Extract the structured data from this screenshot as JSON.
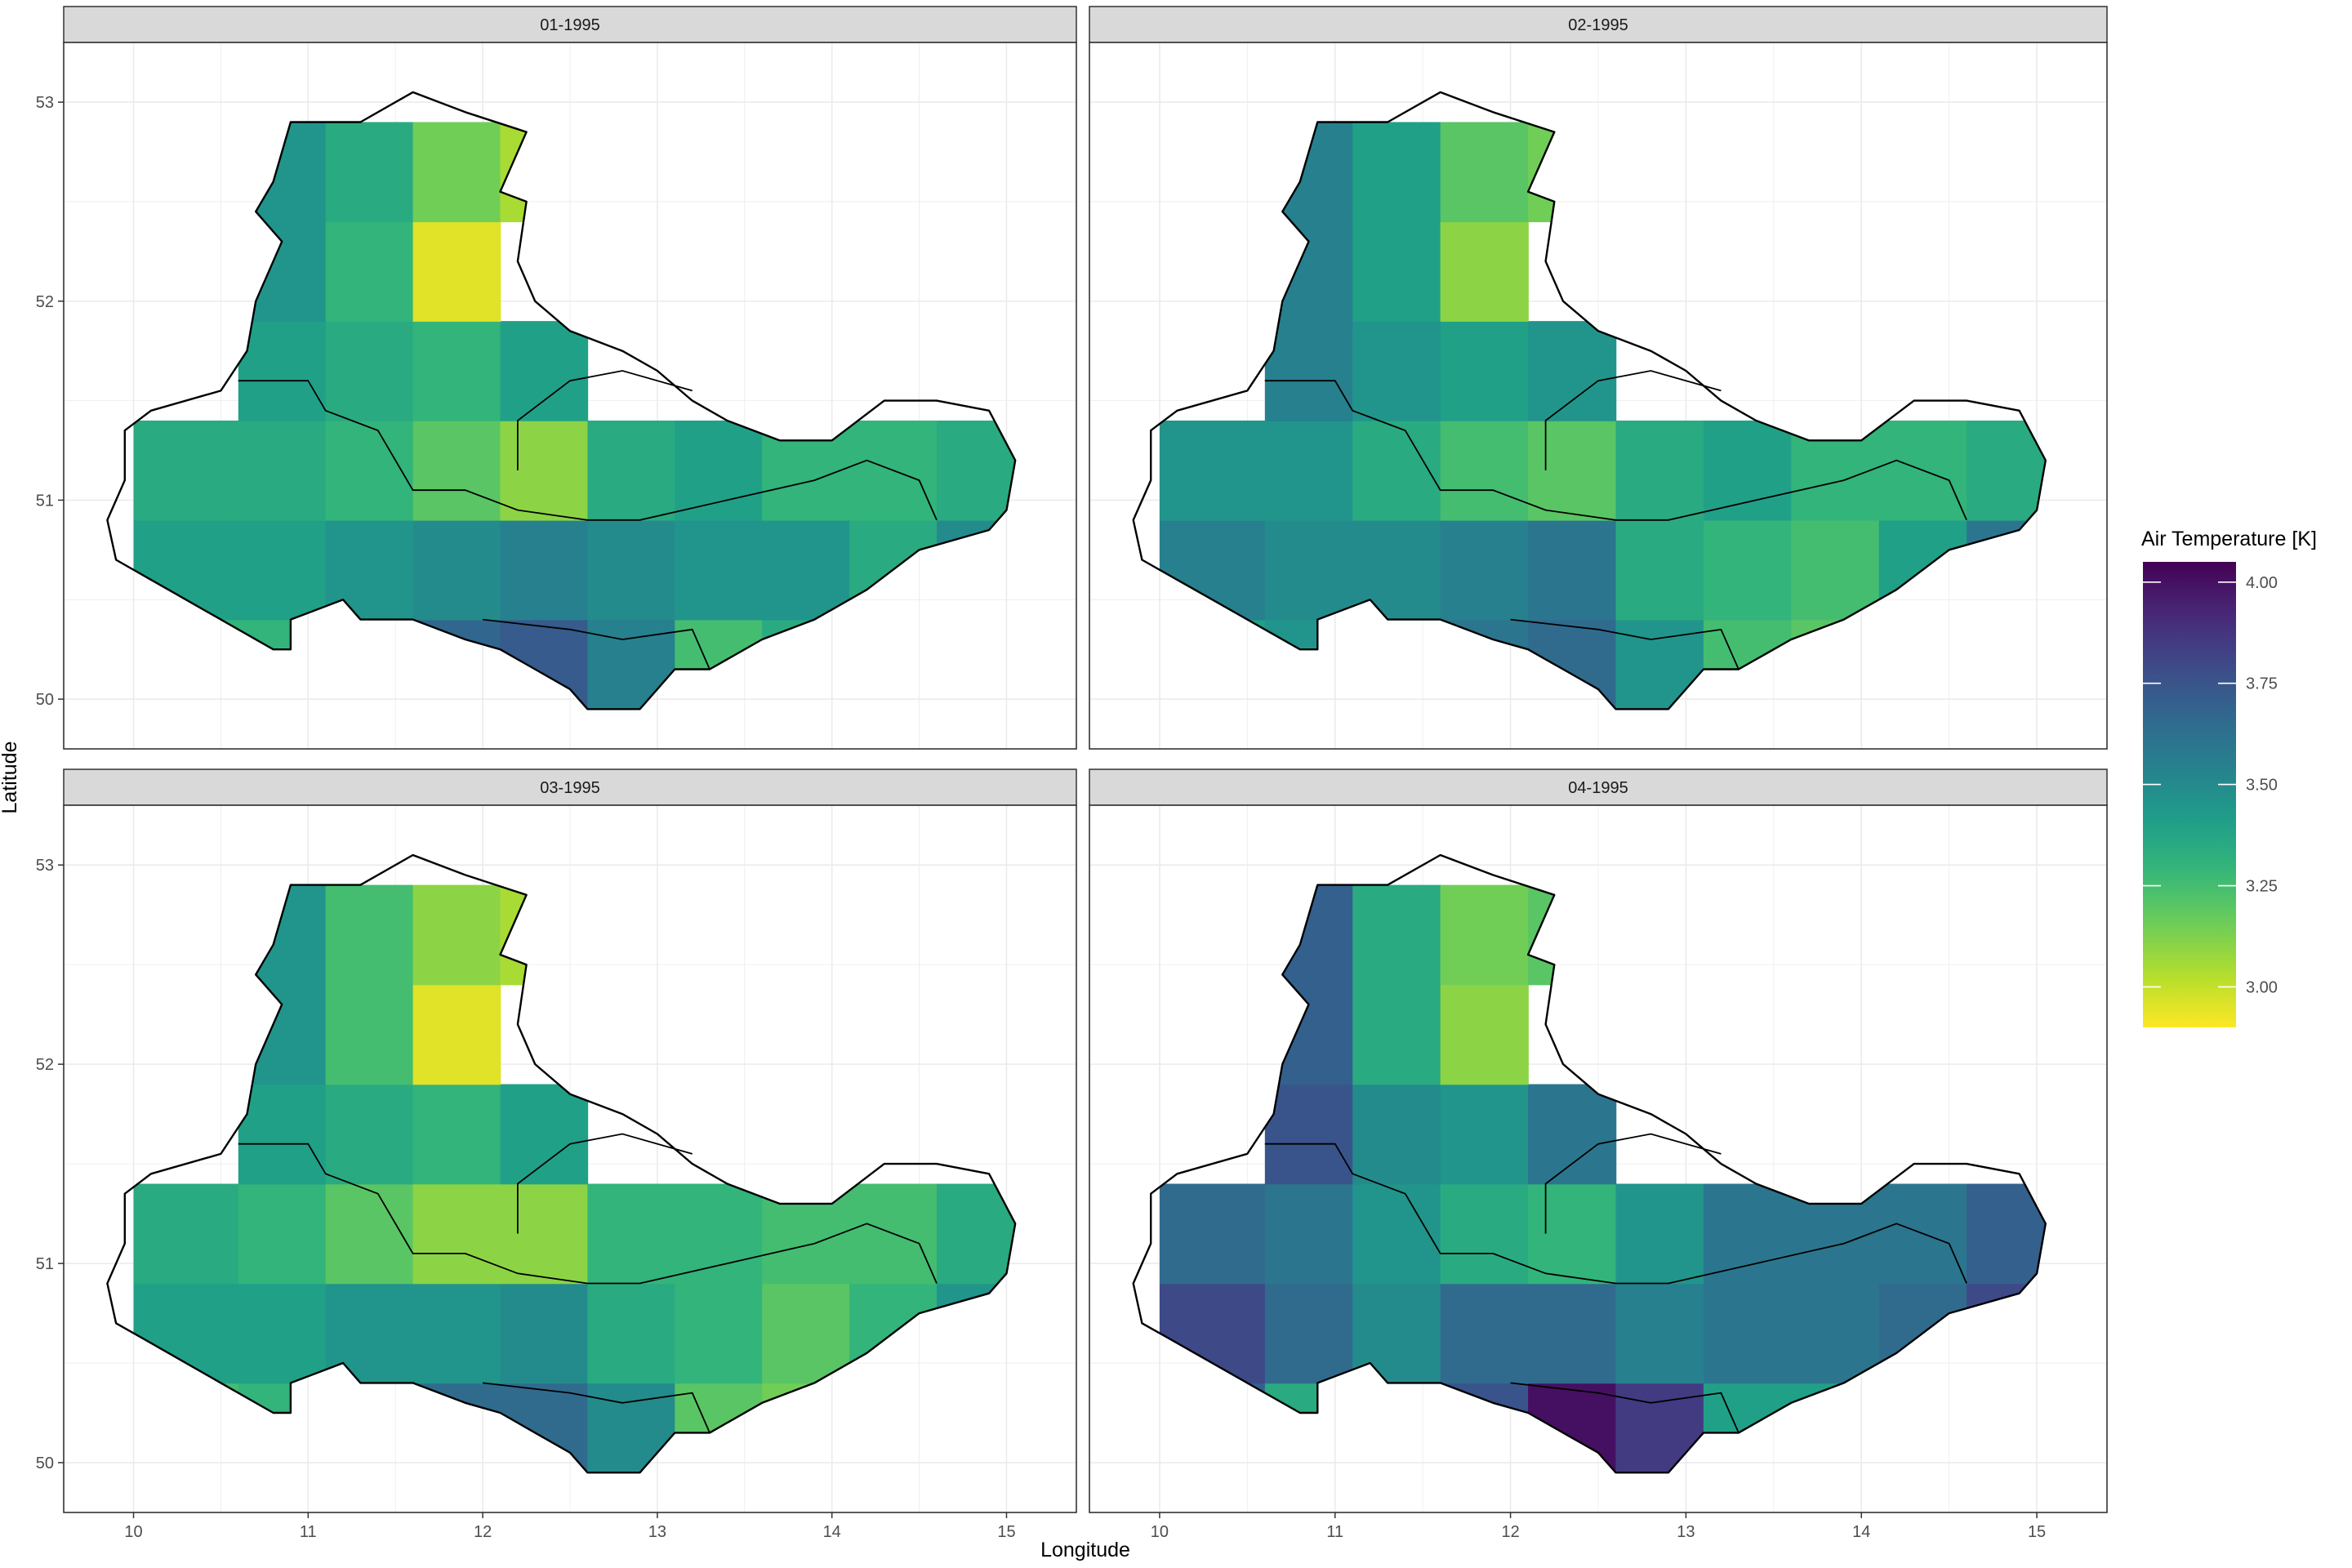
{
  "chart_data": {
    "type": "heatmap",
    "title": "",
    "xlabel": "Longitude",
    "ylabel": "Latitude",
    "xlim": [
      9.6,
      15.4
    ],
    "ylim": [
      49.75,
      53.3
    ],
    "x_ticks": [
      10,
      11,
      12,
      13,
      14,
      15
    ],
    "y_ticks": [
      50,
      51,
      52,
      53
    ],
    "grid": true,
    "legend": {
      "title": "Air Temperature [K]",
      "position": "right",
      "range": [
        2.9,
        4.05
      ],
      "ticks": [
        3.0,
        3.25,
        3.5,
        3.75,
        4.0
      ],
      "tick_labels": [
        "3.00",
        "3.25",
        "3.50",
        "3.75",
        "4.00"
      ],
      "colormap": "viridis-reversed"
    },
    "grid_x_edges": [
      10.0,
      10.6,
      11.1,
      11.6,
      12.1,
      12.6,
      13.1,
      13.6,
      14.1,
      14.6,
      15.1
    ],
    "grid_y_edges": [
      49.9,
      50.4,
      50.9,
      51.4,
      51.9,
      52.4,
      52.9
    ],
    "region_outline": [
      [
        10.2,
        50.55
      ],
      [
        10.5,
        50.4
      ],
      [
        10.8,
        50.25
      ],
      [
        10.9,
        50.25
      ],
      [
        10.9,
        50.4
      ],
      [
        11.2,
        50.5
      ],
      [
        11.3,
        50.4
      ],
      [
        11.6,
        50.4
      ],
      [
        11.9,
        50.3
      ],
      [
        12.1,
        50.25
      ],
      [
        12.3,
        50.15
      ],
      [
        12.5,
        50.05
      ],
      [
        12.6,
        49.95
      ],
      [
        12.9,
        49.95
      ],
      [
        13.1,
        50.15
      ],
      [
        13.3,
        50.15
      ],
      [
        13.6,
        50.3
      ],
      [
        13.9,
        50.4
      ],
      [
        14.2,
        50.55
      ],
      [
        14.5,
        50.75
      ],
      [
        14.9,
        50.85
      ],
      [
        15.0,
        50.95
      ],
      [
        15.05,
        51.2
      ],
      [
        14.9,
        51.45
      ],
      [
        14.6,
        51.5
      ],
      [
        14.3,
        51.5
      ],
      [
        14.0,
        51.3
      ],
      [
        13.7,
        51.3
      ],
      [
        13.4,
        51.4
      ],
      [
        13.2,
        51.5
      ],
      [
        13.0,
        51.65
      ],
      [
        12.8,
        51.75
      ],
      [
        12.5,
        51.85
      ],
      [
        12.3,
        52.0
      ],
      [
        12.2,
        52.2
      ],
      [
        12.25,
        52.5
      ],
      [
        12.1,
        52.55
      ],
      [
        12.25,
        52.85
      ],
      [
        11.9,
        52.95
      ],
      [
        11.6,
        53.05
      ],
      [
        11.3,
        52.9
      ],
      [
        10.9,
        52.9
      ],
      [
        10.8,
        52.6
      ],
      [
        10.7,
        52.45
      ],
      [
        10.85,
        52.3
      ],
      [
        10.7,
        52.0
      ],
      [
        10.65,
        51.75
      ],
      [
        10.5,
        51.55
      ],
      [
        10.1,
        51.45
      ],
      [
        9.95,
        51.35
      ],
      [
        9.95,
        51.1
      ],
      [
        9.85,
        50.9
      ],
      [
        9.9,
        50.7
      ],
      [
        10.1,
        50.6
      ]
    ],
    "internal_borders": [
      [
        [
          10.6,
          51.6
        ],
        [
          11.0,
          51.6
        ],
        [
          11.1,
          51.45
        ],
        [
          11.4,
          51.35
        ],
        [
          11.6,
          51.05
        ],
        [
          11.9,
          51.05
        ],
        [
          12.2,
          50.95
        ],
        [
          12.6,
          50.9
        ],
        [
          12.9,
          50.9
        ],
        [
          13.4,
          51.0
        ],
        [
          13.9,
          51.1
        ],
        [
          14.2,
          51.2
        ],
        [
          14.5,
          51.1
        ],
        [
          14.6,
          50.9
        ]
      ],
      [
        [
          12.2,
          51.15
        ],
        [
          12.2,
          51.4
        ],
        [
          12.5,
          51.6
        ],
        [
          12.8,
          51.65
        ],
        [
          13.2,
          51.55
        ]
      ],
      [
        [
          12.0,
          50.4
        ],
        [
          12.5,
          50.35
        ],
        [
          12.8,
          50.3
        ],
        [
          13.2,
          50.35
        ],
        [
          13.3,
          50.15
        ]
      ]
    ],
    "series": [
      {
        "name": "01-1995",
        "values": [
          [
            3.3,
            3.3,
            3.5,
            3.67,
            3.72,
            3.55,
            3.25,
            3.35,
            3.35,
            null
          ],
          [
            3.4,
            3.4,
            3.45,
            3.5,
            3.55,
            3.5,
            3.45,
            3.45,
            3.35,
            3.5
          ],
          [
            3.35,
            3.35,
            3.3,
            3.2,
            3.1,
            3.35,
            3.4,
            3.3,
            3.3,
            3.35
          ],
          [
            null,
            3.4,
            3.35,
            3.3,
            3.4,
            null,
            null,
            null,
            null,
            null
          ],
          [
            null,
            3.45,
            3.3,
            2.95,
            null,
            null,
            null,
            null,
            null,
            null
          ],
          [
            null,
            3.45,
            3.35,
            3.15,
            3.05,
            null,
            null,
            null,
            null,
            null
          ]
        ]
      },
      {
        "name": "02-1995",
        "values": [
          [
            3.4,
            3.45,
            3.5,
            3.6,
            3.65,
            3.45,
            3.25,
            3.2,
            3.35,
            null
          ],
          [
            3.55,
            3.5,
            3.5,
            3.55,
            3.6,
            3.35,
            3.3,
            3.25,
            3.4,
            3.6
          ],
          [
            3.45,
            3.45,
            3.35,
            3.25,
            3.2,
            3.35,
            3.4,
            3.3,
            3.3,
            3.35
          ],
          [
            null,
            3.55,
            3.45,
            3.4,
            3.45,
            null,
            null,
            null,
            null,
            null
          ],
          [
            null,
            3.55,
            3.4,
            3.1,
            null,
            null,
            null,
            null,
            null,
            null
          ],
          [
            null,
            3.55,
            3.4,
            3.2,
            3.15,
            null,
            null,
            null,
            null,
            null
          ]
        ]
      },
      {
        "name": "03-1995",
        "values": [
          [
            3.25,
            3.3,
            3.5,
            3.65,
            3.65,
            3.5,
            3.2,
            3.15,
            3.3,
            null
          ],
          [
            3.4,
            3.4,
            3.45,
            3.45,
            3.5,
            3.35,
            3.3,
            3.2,
            3.3,
            3.45
          ],
          [
            3.35,
            3.3,
            3.2,
            3.1,
            3.1,
            3.3,
            3.3,
            3.25,
            3.25,
            3.35
          ],
          [
            null,
            3.4,
            3.35,
            3.3,
            3.4,
            null,
            null,
            null,
            null,
            null
          ],
          [
            null,
            3.45,
            3.25,
            2.95,
            null,
            null,
            null,
            null,
            null,
            null
          ],
          [
            null,
            3.45,
            3.25,
            3.1,
            3.05,
            null,
            null,
            null,
            null,
            null
          ]
        ]
      },
      {
        "name": "04-1995",
        "values": [
          [
            3.7,
            3.35,
            3.45,
            3.75,
            4.0,
            3.85,
            3.4,
            3.4,
            3.4,
            null
          ],
          [
            3.8,
            3.65,
            3.5,
            3.65,
            3.65,
            3.55,
            3.6,
            3.6,
            3.65,
            3.8
          ],
          [
            3.65,
            3.6,
            3.45,
            3.35,
            3.3,
            3.45,
            3.6,
            3.6,
            3.6,
            3.7
          ],
          [
            null,
            3.75,
            3.5,
            3.45,
            3.6,
            null,
            null,
            null,
            null,
            null
          ],
          [
            null,
            3.7,
            3.35,
            3.1,
            null,
            null,
            null,
            null,
            null,
            null
          ],
          [
            null,
            3.7,
            3.35,
            3.15,
            3.2,
            null,
            null,
            null,
            null,
            null
          ]
        ]
      }
    ]
  }
}
